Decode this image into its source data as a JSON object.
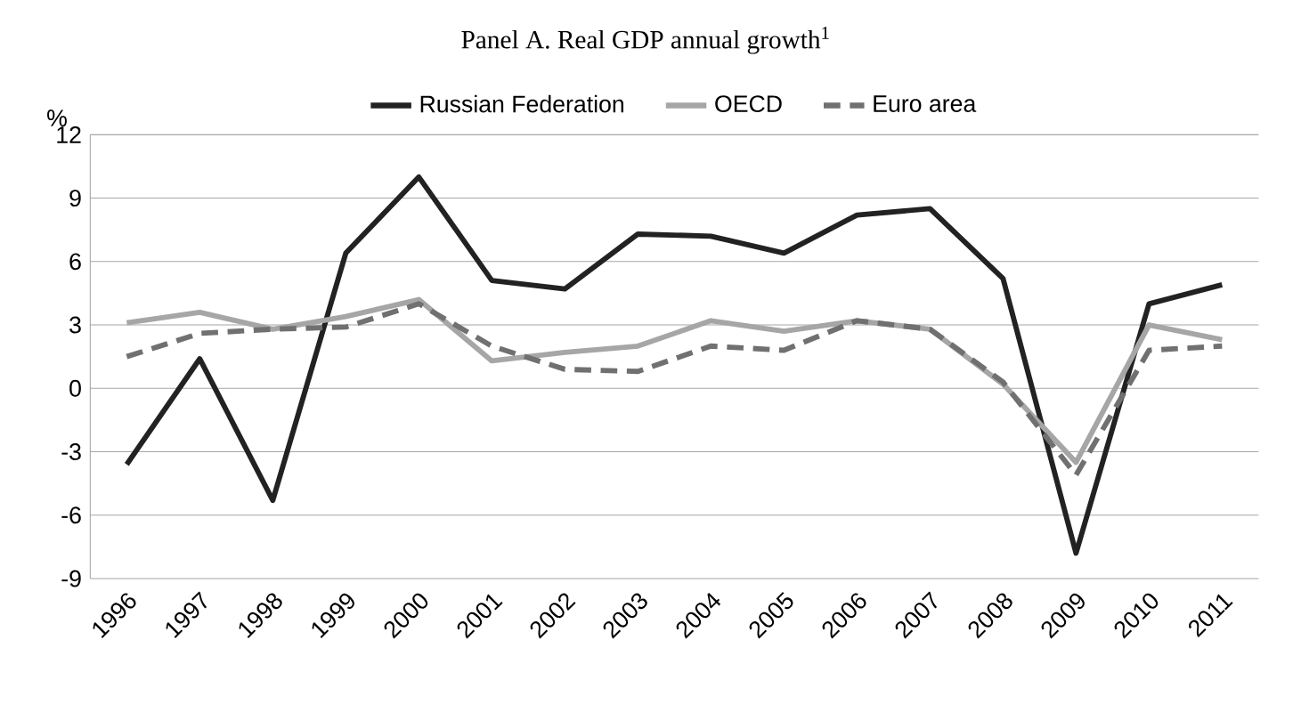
{
  "chart_data": {
    "type": "line",
    "title": "Panel A. Real GDP annual growth$^{1}$",
    "ylabel": "%",
    "categories": [
      "1996",
      "1997",
      "1998",
      "1999",
      "2000",
      "2001",
      "2002",
      "2003",
      "2004",
      "2005",
      "2006",
      "2007",
      "2008",
      "2009",
      "2010",
      "2011"
    ],
    "series": [
      {
        "name": "Russian Federation",
        "color": "#222222",
        "line_style": "solid",
        "values": [
          -3.6,
          1.4,
          -5.3,
          6.4,
          10.0,
          5.1,
          4.7,
          7.3,
          7.2,
          6.4,
          8.2,
          8.5,
          5.2,
          -7.8,
          4.0,
          4.9
        ]
      },
      {
        "name": "OECD",
        "color": "#a6a6a6",
        "line_style": "solid",
        "values": [
          3.1,
          3.6,
          2.8,
          3.4,
          4.2,
          1.3,
          1.7,
          2.0,
          3.2,
          2.7,
          3.2,
          2.8,
          0.2,
          -3.5,
          3.0,
          2.3
        ]
      },
      {
        "name": "Euro area",
        "color": "#707070",
        "line_style": "dashed",
        "values": [
          1.5,
          2.6,
          2.8,
          2.9,
          4.0,
          2.0,
          0.9,
          0.8,
          2.0,
          1.8,
          3.2,
          2.8,
          0.3,
          -4.1,
          1.8,
          2.0
        ]
      }
    ],
    "ylim": [
      -9,
      12
    ],
    "yticks": [
      -9,
      -6,
      -3,
      0,
      3,
      6,
      9,
      12
    ],
    "grid": "y",
    "legend": "top",
    "marker": "none"
  }
}
